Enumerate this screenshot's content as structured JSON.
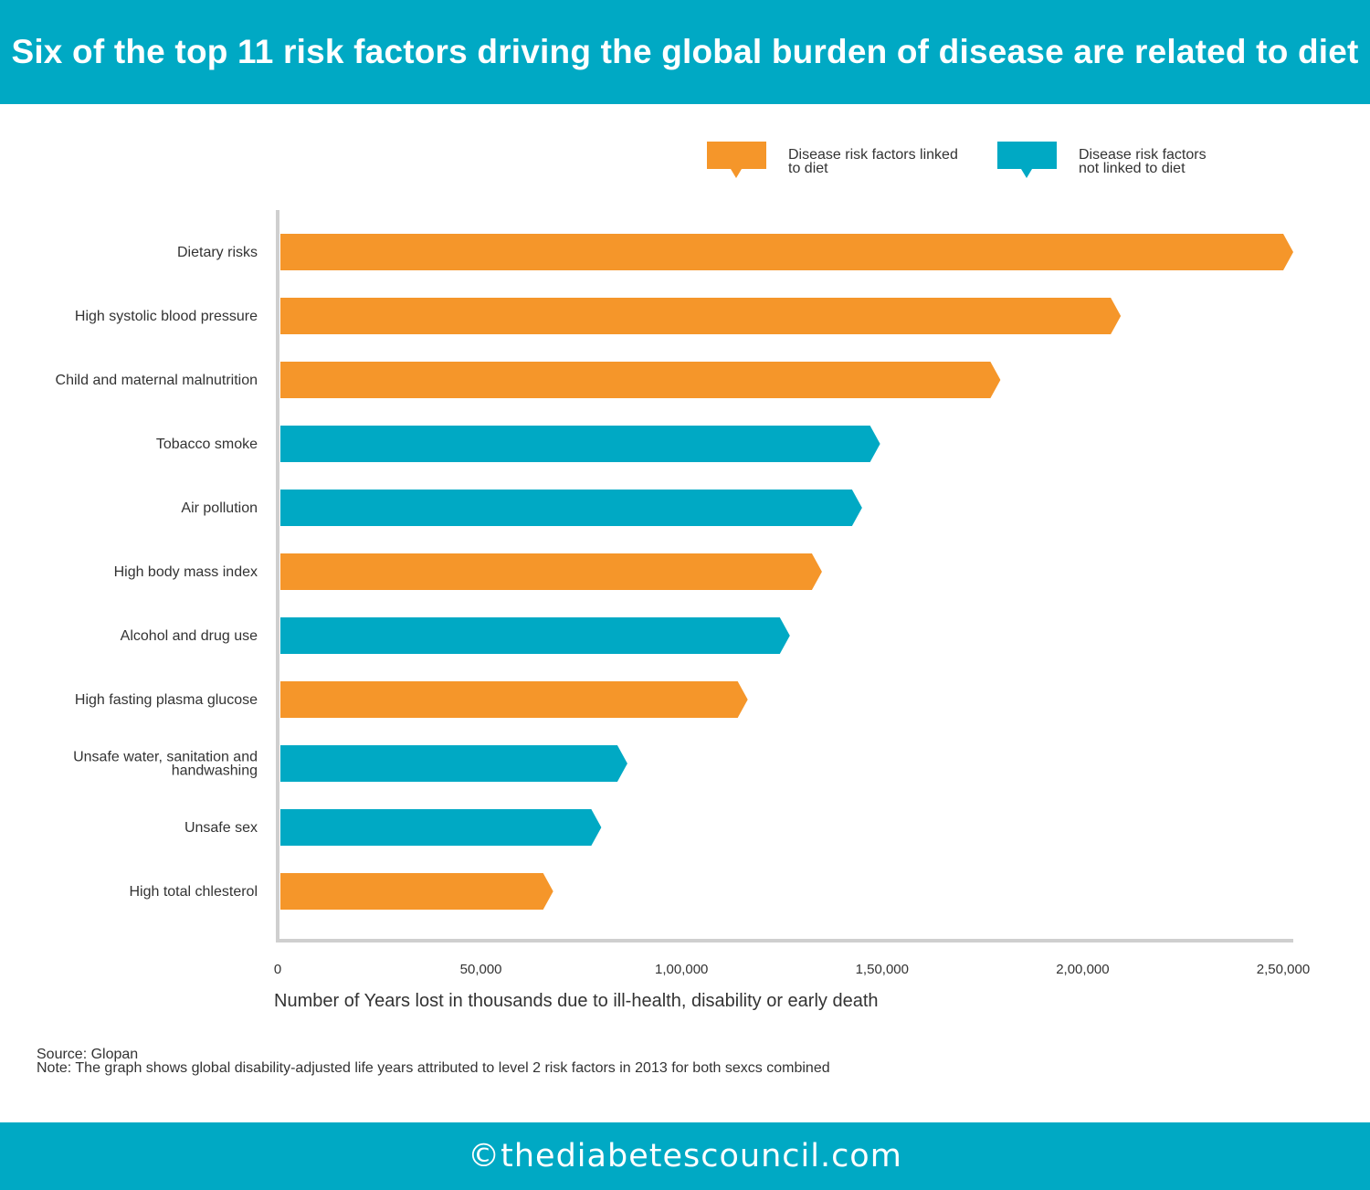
{
  "header": {
    "title": "Six of the top 11 risk factors driving the global burden of disease are related to diet"
  },
  "legend": [
    {
      "label_line1": "Disease risk factors linked",
      "label_line2": "to diet",
      "color": "#f5962a"
    },
    {
      "label_line1": "Disease risk factors",
      "label_line2": "not linked to diet",
      "color": "#00a9c4"
    }
  ],
  "chart_data": {
    "type": "bar",
    "orientation": "horizontal",
    "categories": [
      [
        "Dietary risks"
      ],
      [
        "High systolic blood pressure"
      ],
      [
        "Child and maternal malnutrition"
      ],
      [
        "Tobacco smoke"
      ],
      [
        "Air pollution"
      ],
      [
        "High body mass index"
      ],
      [
        "Alcohol and drug use"
      ],
      [
        "High fasting plasma glucose"
      ],
      [
        "Unsafe water, sanitation and",
        "handwashing"
      ],
      [
        "Unsafe sex"
      ],
      [
        "High total chlesterol"
      ]
    ],
    "values": [
      250000,
      207000,
      177000,
      147000,
      142500,
      132500,
      124500,
      114000,
      84000,
      77500,
      65500
    ],
    "diet_linked": [
      true,
      true,
      true,
      false,
      false,
      true,
      false,
      true,
      false,
      false,
      true
    ],
    "colors": {
      "diet": "#f5962a",
      "non_diet": "#00a9c4"
    },
    "xlim": [
      0,
      250000
    ],
    "xticks": [
      0,
      50000,
      100000,
      150000,
      200000,
      250000
    ],
    "xtick_labels": [
      "0",
      "50,000",
      "1,00,000",
      "1,50,000",
      "2,00,000",
      "2,50,000"
    ],
    "xlabel": "Number of Years lost in thousands due to ill-health, disability or early death",
    "ylabel": "",
    "legend_position": "top-right",
    "grid": false
  },
  "notes": {
    "source": "Source: Glopan",
    "note": "Note: The graph shows global disability-adjusted life years attributed to level 2 risk factors in 2013 for both sexcs combined"
  },
  "footer": {
    "text": "©thediabetescouncil.com"
  }
}
